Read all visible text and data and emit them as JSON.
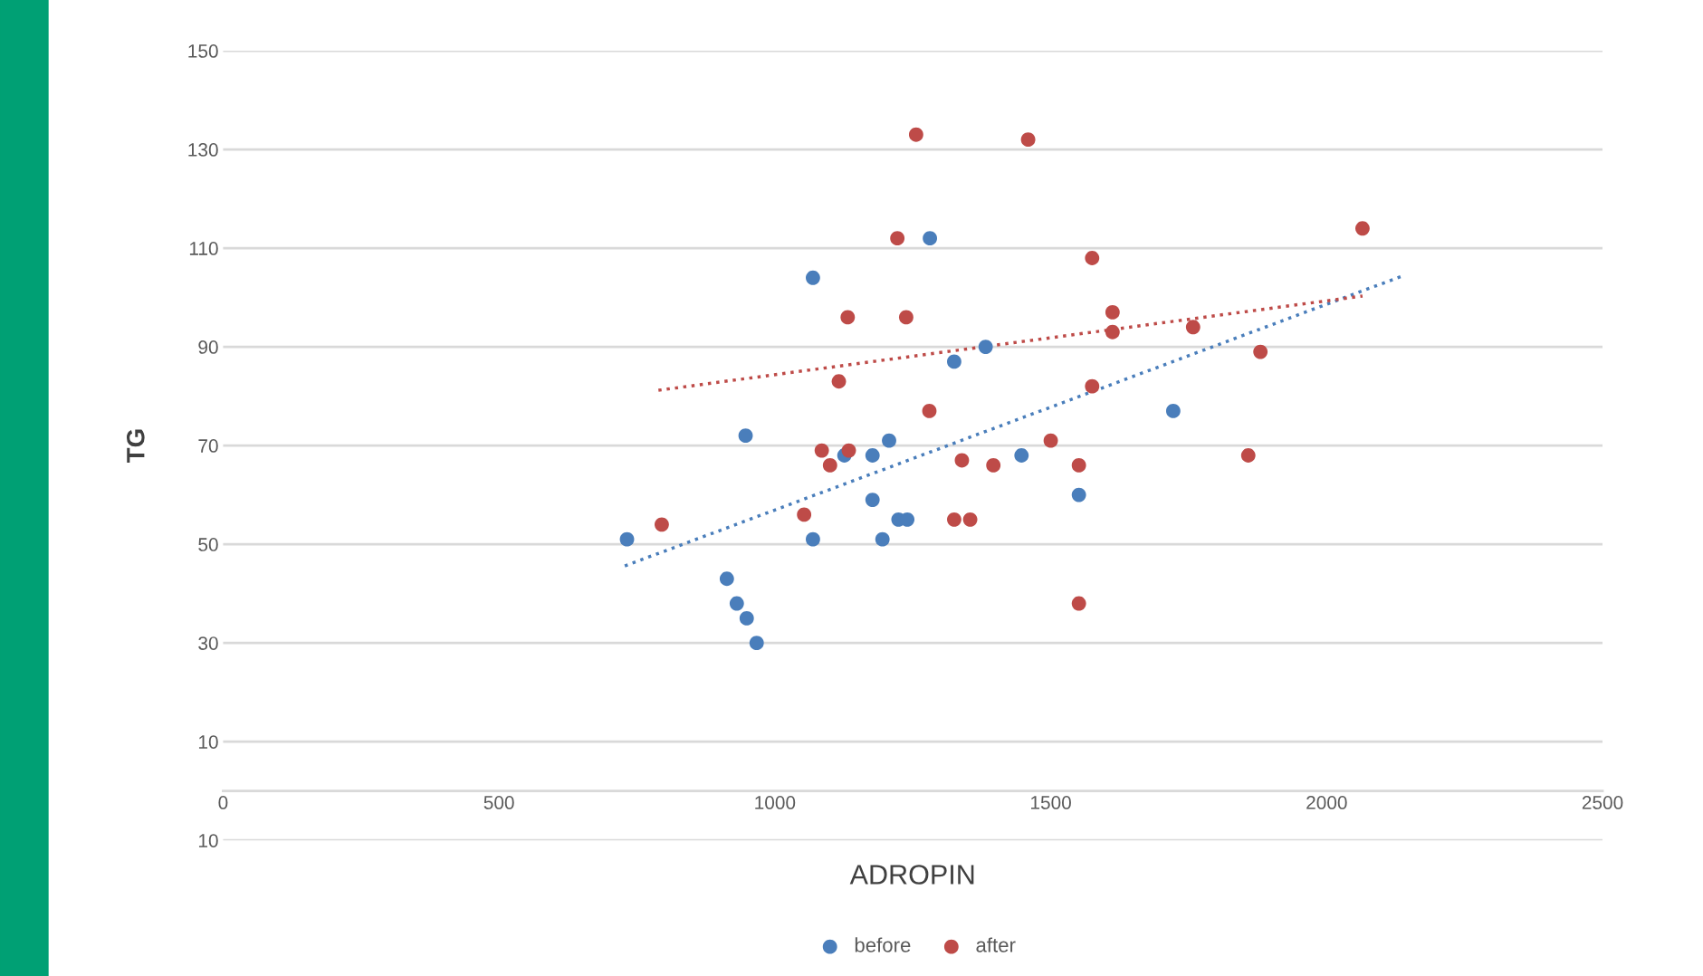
{
  "chart_data": {
    "type": "scatter",
    "xlabel": "ADROPIN",
    "ylabel": "TG",
    "xlim": [
      0,
      2500
    ],
    "xticks": [
      0,
      500,
      1000,
      1500,
      2000,
      2500
    ],
    "ylim": [
      -10,
      150
    ],
    "yticks": [
      {
        "value": -10,
        "label": "10"
      },
      10,
      30,
      50,
      70,
      90,
      110,
      130,
      150
    ],
    "grid": "y",
    "legend": "bottom",
    "marker": "circle",
    "series": [
      {
        "name": "before",
        "color": "#4a7ebb",
        "x": [
          732,
          1069,
          947,
          913,
          931,
          949,
          967,
          1069,
          1126,
          1177,
          1207,
          1177,
          1195,
          1224,
          1240,
          1281,
          1325,
          1382,
          1447,
          1551,
          1722
        ],
        "values": [
          51,
          104,
          72,
          43,
          38,
          35,
          30,
          51,
          68,
          68,
          71,
          59,
          51,
          55,
          55,
          112,
          87,
          90,
          68,
          60,
          77
        ]
      },
      {
        "name": "after",
        "color": "#be4b48",
        "x": [
          795,
          1053,
          1085,
          1100,
          1134,
          1116,
          1132,
          1222,
          1238,
          1256,
          1280,
          1325,
          1354,
          1339,
          1396,
          1459,
          1500,
          1551,
          1551,
          1575,
          1575,
          1612,
          1612,
          1758,
          1858,
          1880,
          2065
        ],
        "values": [
          54,
          56,
          69,
          66,
          69,
          83,
          96,
          112,
          96,
          133,
          77,
          55,
          55,
          67,
          66,
          132,
          71,
          66,
          38,
          108,
          82,
          97,
          93,
          94,
          68,
          89,
          114
        ]
      },
      {
        "type": "line",
        "color": "#4a7ebb",
        "marker": "none",
        "line_style": "dotted",
        "x": [
          728,
          2136
        ],
        "values": [
          45.6,
          104.3
        ]
      },
      {
        "type": "line",
        "color": "#be4b48",
        "marker": "none",
        "line_style": "dotted",
        "x": [
          789,
          2065
        ],
        "values": [
          81.2,
          100.3
        ]
      }
    ]
  }
}
